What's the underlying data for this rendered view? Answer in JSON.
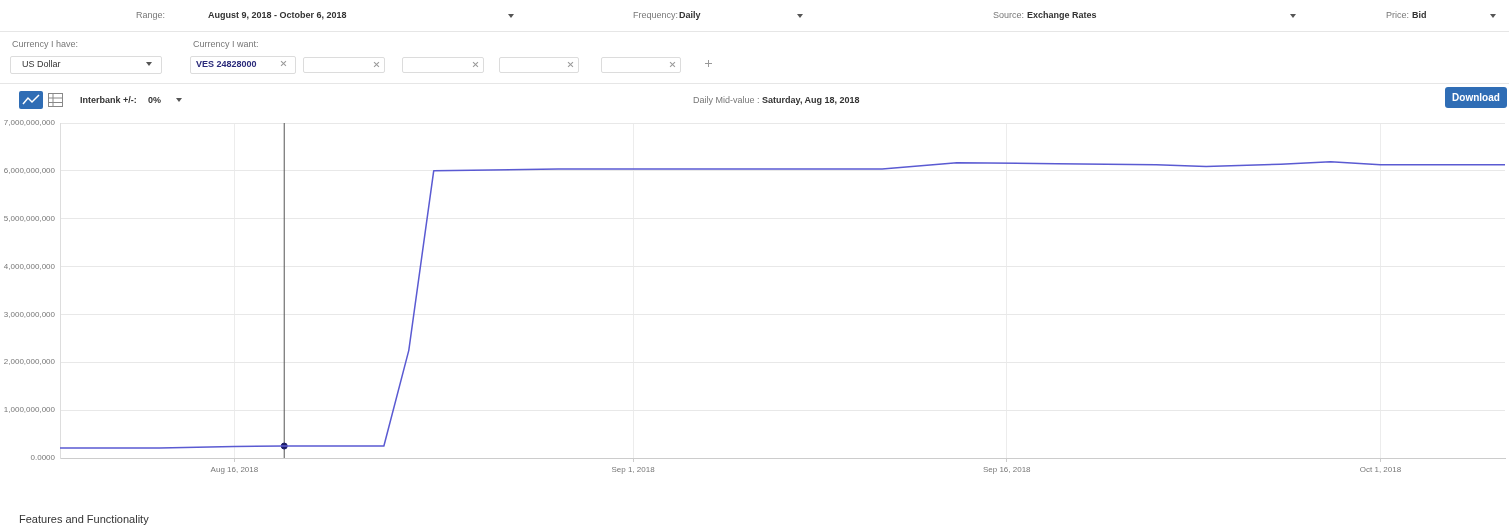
{
  "chart_data": {
    "type": "line",
    "annotations": [
      "Range:",
      "August 9, 2018 - October 6, 2018",
      "Frequency:",
      "Daily",
      "Source:",
      "Exchange Rates",
      "Price:",
      "Bid",
      "Currency I have:",
      "US Dollar",
      "Currency I want:",
      "VES 24828000",
      "Interbank +/-:",
      "0%",
      "Daily Mid-value :",
      "Saturday, Aug 18, 2018",
      "Download",
      "Features and Functionality"
    ],
    "series": [
      {
        "type": "line",
        "color": "#5a5ad2",
        "marker": "none",
        "line_style": "solid",
        "x": [
          "2018-08-09",
          "2018-08-13",
          "2018-08-16",
          "2018-08-18",
          "2018-08-22",
          "2018-08-23",
          "2018-08-24",
          "2018-08-29",
          "2018-09-11",
          "2018-09-14",
          "2018-09-18",
          "2018-09-22",
          "2018-09-24",
          "2018-09-27",
          "2018-09-29",
          "2018-10-01",
          "2018-10-06"
        ],
        "values": [
          210000000,
          210000000,
          240000000,
          250000000,
          250000000,
          2250000000,
          6000000000,
          6040000000,
          6040000000,
          6170000000,
          6150000000,
          6130000000,
          6090000000,
          6140000000,
          6190000000,
          6130000000,
          6130000000
        ]
      },
      {
        "type": "scatter",
        "color": "#1c1c66",
        "marker": "circle",
        "x": [
          "2018-08-18"
        ],
        "values": [
          250000000
        ]
      }
    ],
    "xlim": [
      "2018-08-09",
      "2018-10-06"
    ],
    "xticks": [
      {
        "value": "2018-08-16",
        "label": "Aug 16, 2018"
      },
      {
        "value": "2018-09-01",
        "label": "Sep 1, 2018"
      },
      {
        "value": "2018-09-16",
        "label": "Sep 16, 2018"
      },
      {
        "value": "2018-10-01",
        "label": "Oct 1, 2018"
      }
    ],
    "ylim": [
      0,
      7000000000
    ],
    "yticks": [
      {
        "value": 0,
        "label": "0.0000"
      },
      {
        "value": 1000000000,
        "label": "1,000,000,000"
      },
      {
        "value": 2000000000,
        "label": "2,000,000,000"
      },
      {
        "value": 3000000000,
        "label": "3,000,000,000"
      },
      {
        "value": 4000000000,
        "label": "4,000,000,000"
      },
      {
        "value": 5000000000,
        "label": "5,000,000,000"
      },
      {
        "value": 6000000000,
        "label": "6,000,000,000"
      },
      {
        "value": 7000000000,
        "label": "7,000,000,000"
      }
    ],
    "grid": true,
    "ref_lines": [
      {
        "axis": "x",
        "value": "2018-08-18",
        "color": "#555555"
      }
    ]
  }
}
